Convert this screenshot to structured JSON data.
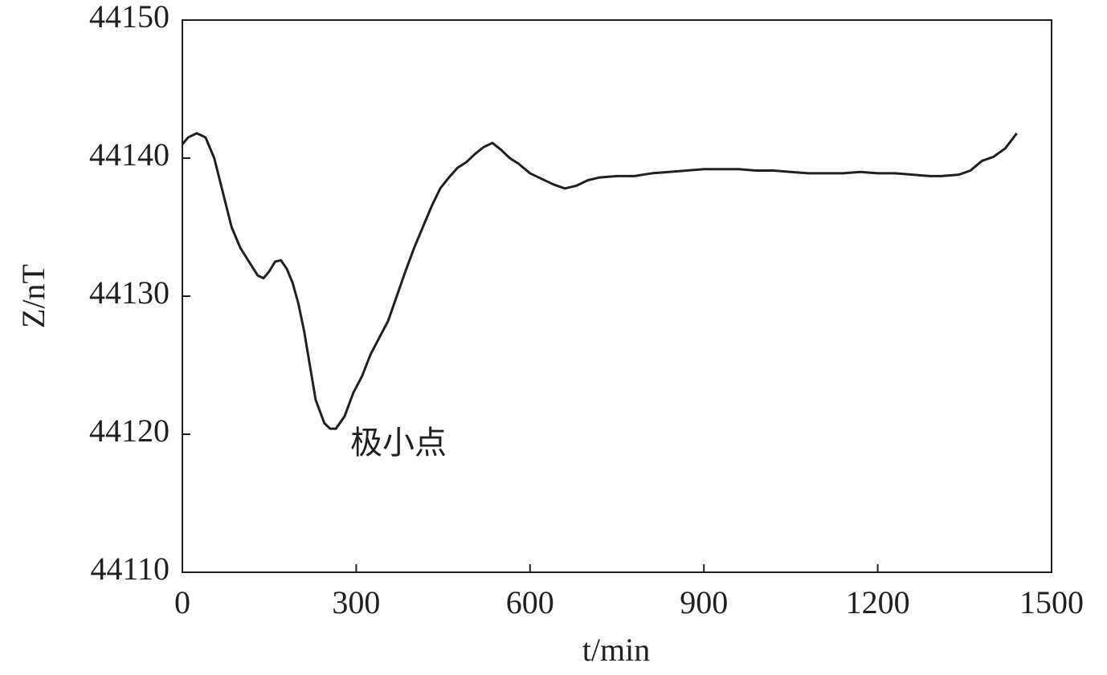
{
  "chart_data": {
    "type": "line",
    "x_label": "t/min",
    "y_label": "Z/nT",
    "annotation": "极小点",
    "color": "#231f20",
    "x": [
      0,
      10,
      25,
      40,
      55,
      70,
      85,
      100,
      115,
      130,
      140,
      150,
      160,
      170,
      180,
      190,
      200,
      210,
      220,
      230,
      245,
      255,
      265,
      280,
      295,
      310,
      325,
      340,
      355,
      370,
      385,
      400,
      415,
      430,
      445,
      460,
      475,
      490,
      505,
      520,
      535,
      550,
      565,
      580,
      600,
      620,
      640,
      660,
      680,
      700,
      720,
      750,
      780,
      810,
      840,
      870,
      900,
      930,
      960,
      990,
      1020,
      1050,
      1080,
      1110,
      1140,
      1170,
      1200,
      1230,
      1260,
      1290,
      1310,
      1340,
      1360,
      1380,
      1400,
      1420,
      1440
    ],
    "values": [
      44141.0,
      44141.5,
      44141.8,
      44141.5,
      44140,
      44137.5,
      44135,
      44133.5,
      44132.5,
      44131.5,
      44131.3,
      44131.8,
      44132.5,
      44132.6,
      44132,
      44131,
      44129.5,
      44127.5,
      44125,
      44122.5,
      44120.8,
      44120.4,
      44120.4,
      44121.3,
      44123,
      44124.2,
      44125.8,
      44127,
      44128.2,
      44130,
      44131.8,
      44133.5,
      44135,
      44136.5,
      44137.8,
      44138.6,
      44139.3,
      44139.7,
      44140.3,
      44140.8,
      44141.1,
      44140.6,
      44140,
      44139.6,
      44138.9,
      44138.5,
      44138.1,
      44137.8,
      44138,
      44138.4,
      44138.6,
      44138.7,
      44138.7,
      44138.9,
      44139,
      44139.1,
      44139.2,
      44139.2,
      44139.2,
      44139.1,
      44139.1,
      44139,
      44138.9,
      44138.9,
      44138.9,
      44139,
      44138.9,
      44138.9,
      44138.8,
      44138.7,
      44138.7,
      44138.8,
      44139.1,
      44139.8,
      44140.1,
      44140.7,
      44141.8
    ],
    "xlim": [
      0,
      1500
    ],
    "xticks": [
      0,
      300,
      600,
      900,
      1200,
      1500
    ],
    "ylim": [
      44110,
      44150
    ],
    "yticks": [
      44110,
      44120,
      44130,
      44140,
      44150
    ]
  }
}
